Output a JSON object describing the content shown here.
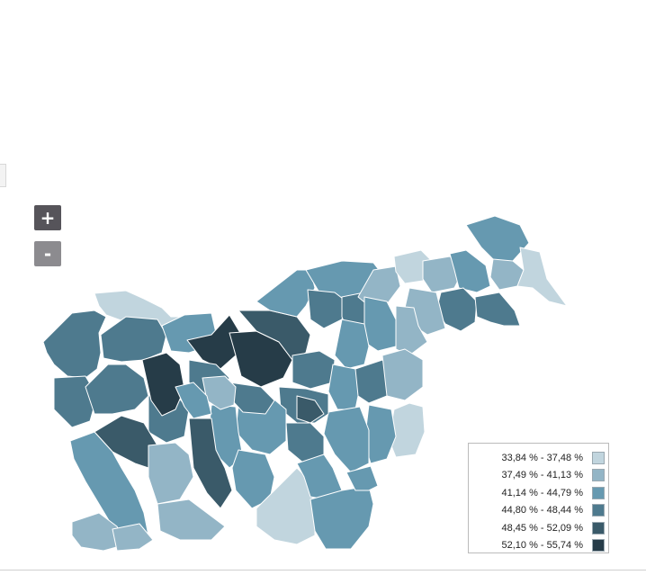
{
  "controls": {
    "zoom_in_label": "+",
    "zoom_out_label": "-"
  },
  "legend": {
    "items": [
      {
        "label": "33,84 % - 37,48 %",
        "color": "#c1d5de"
      },
      {
        "label": "37,49 % - 41,13 %",
        "color": "#93b5c6"
      },
      {
        "label": "41,14 % - 44,79 %",
        "color": "#6699b0"
      },
      {
        "label": "44,80 % - 48,44 %",
        "color": "#4e7a8e"
      },
      {
        "label": "48,45 % - 52,09 %",
        "color": "#3a5a69"
      },
      {
        "label": "52,10 % - 55,74 %",
        "color": "#263c48"
      }
    ]
  },
  "map": {
    "stroke_color": "#ffffff"
  }
}
